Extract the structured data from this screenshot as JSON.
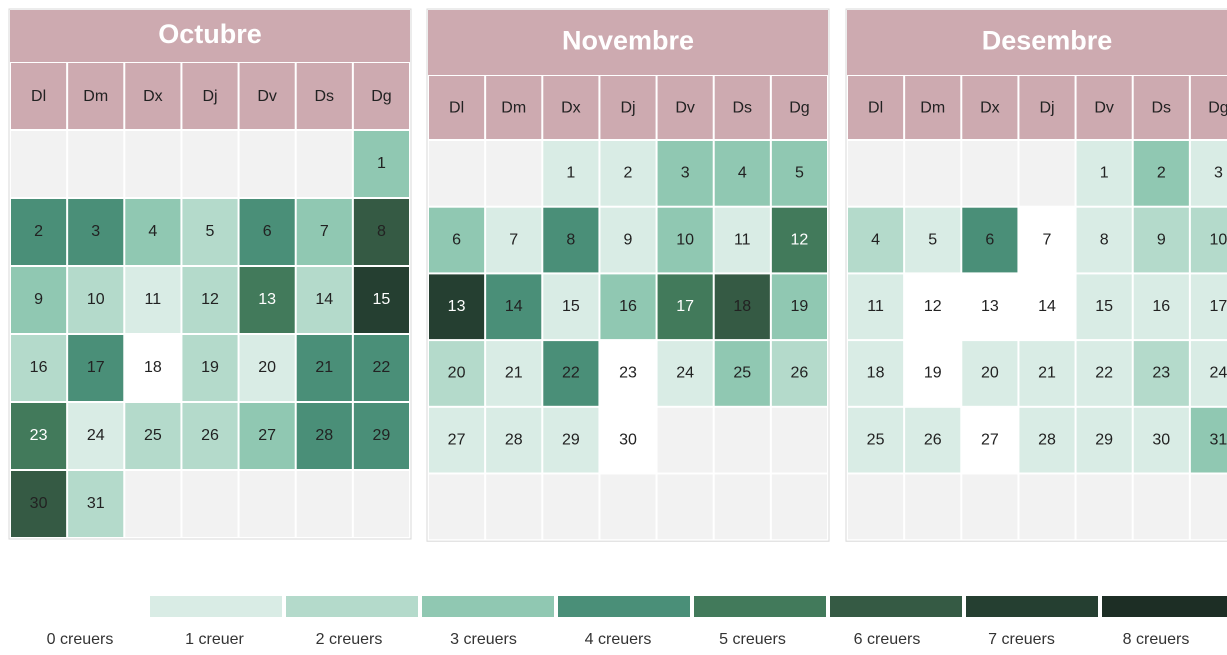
{
  "weekdays": [
    "Dl",
    "Dm",
    "Dx",
    "Dj",
    "Dv",
    "Ds",
    "Dg"
  ],
  "colors": [
    "#ffffff",
    "#d9ece5",
    "#b4dacb",
    "#90c8b2",
    "#4a8f78",
    "#427a5b",
    "#355a44",
    "#253f31",
    "#1d2e25"
  ],
  "months": [
    {
      "name": "Octubre",
      "weeks": [
        [
          null,
          null,
          null,
          null,
          null,
          null,
          1
        ],
        [
          2,
          3,
          4,
          5,
          6,
          7,
          8
        ],
        [
          9,
          10,
          11,
          12,
          13,
          14,
          15
        ],
        [
          16,
          17,
          18,
          19,
          20,
          21,
          22
        ],
        [
          23,
          24,
          25,
          26,
          27,
          28,
          29
        ],
        [
          30,
          31,
          null,
          null,
          null,
          null,
          null
        ]
      ],
      "values": [
        3,
        4,
        4,
        3,
        2,
        4,
        3,
        6,
        3,
        2,
        1,
        2,
        5,
        2,
        7,
        2,
        4,
        0,
        2,
        1,
        4,
        4,
        5,
        1,
        2,
        2,
        3,
        4,
        4,
        6,
        2
      ]
    },
    {
      "name": "Novembre",
      "weeks": [
        [
          null,
          null,
          1,
          2,
          3,
          4,
          5
        ],
        [
          6,
          7,
          8,
          9,
          10,
          11,
          12
        ],
        [
          13,
          14,
          15,
          16,
          17,
          18,
          19
        ],
        [
          20,
          21,
          22,
          23,
          24,
          25,
          26
        ],
        [
          27,
          28,
          29,
          30,
          null,
          null,
          null
        ],
        [
          null,
          null,
          null,
          null,
          null,
          null,
          null
        ]
      ],
      "values": [
        1,
        1,
        3,
        3,
        3,
        3,
        1,
        4,
        1,
        3,
        1,
        5,
        7,
        4,
        1,
        3,
        5,
        6,
        3,
        2,
        1,
        4,
        0,
        1,
        3,
        2,
        1,
        1,
        1,
        0
      ]
    },
    {
      "name": "Desembre",
      "weeks": [
        [
          null,
          null,
          null,
          null,
          1,
          2,
          3
        ],
        [
          4,
          5,
          6,
          7,
          8,
          9,
          10
        ],
        [
          11,
          12,
          13,
          14,
          15,
          16,
          17
        ],
        [
          18,
          19,
          20,
          21,
          22,
          23,
          24
        ],
        [
          25,
          26,
          27,
          28,
          29,
          30,
          31
        ],
        [
          null,
          null,
          null,
          null,
          null,
          null,
          null
        ]
      ],
      "values": [
        1,
        3,
        1,
        2,
        1,
        4,
        0,
        1,
        2,
        2,
        1,
        0,
        0,
        0,
        1,
        1,
        1,
        1,
        0,
        1,
        1,
        1,
        2,
        1,
        1,
        1,
        0,
        1,
        1,
        1,
        3
      ]
    }
  ],
  "legend": {
    "labels": [
      "0 creuers",
      "1 creuer",
      "2 creuers",
      "3 creuers",
      "4 creuers",
      "5 creuers",
      "6 creuers",
      "7 creuers",
      "8 creuers"
    ]
  }
}
